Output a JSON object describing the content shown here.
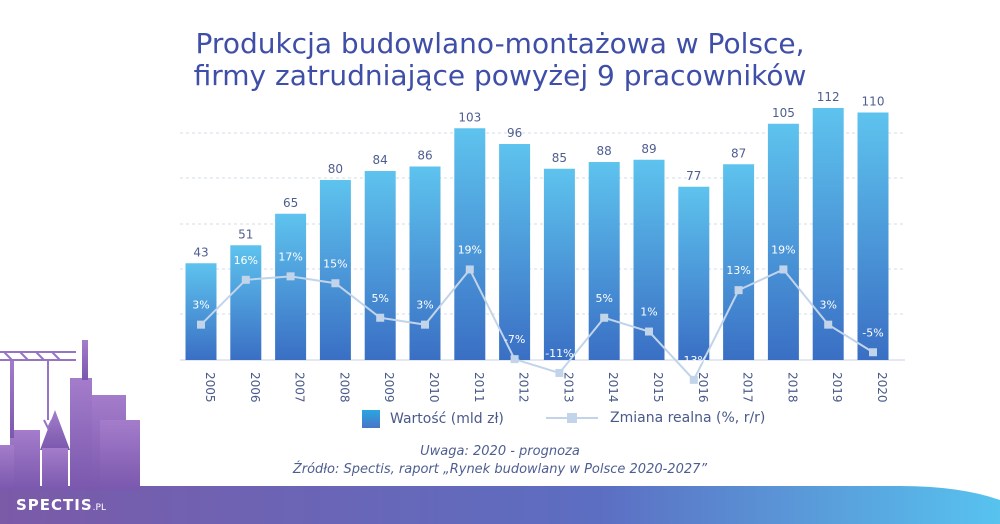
{
  "title_line1": "Produkcja budowlano-montażowa w Polsce,",
  "title_line2": "firmy zatrudniające powyżej 9 pracowników",
  "legend": {
    "bar_label": "Wartość (mld zł)",
    "line_label": "Zmiana realna (%, r/r)"
  },
  "notes": {
    "note": "Uwaga: 2020 - prognoza",
    "source": "Źródło: Spectis, raport „Rynek budowlany w Polsce 2020-2027”"
  },
  "brand": {
    "name": "SPECTIS",
    "suffix": ".PL"
  },
  "colors": {
    "title": "#3f4fa8",
    "bar_top": "#5ec3ee",
    "bar_bottom": "#3a6fc4",
    "line": "#c2d4ea",
    "footer": "#7b5aa8"
  },
  "chart_data": {
    "type": "bar",
    "categories": [
      "2005",
      "2006",
      "2007",
      "2008",
      "2009",
      "2010",
      "2011",
      "2012",
      "2013",
      "2014",
      "2015",
      "2016",
      "2017",
      "2018",
      "2019",
      "2020"
    ],
    "series": [
      {
        "name": "Wartość (mld zł)",
        "type": "bar",
        "values": [
          43,
          51,
          65,
          80,
          84,
          86,
          103,
          96,
          85,
          88,
          89,
          77,
          87,
          105,
          112,
          110
        ]
      },
      {
        "name": "Zmiana realna (%, r/r)",
        "type": "line",
        "values": [
          3,
          16,
          17,
          15,
          5,
          3,
          19,
          -7,
          -11,
          5,
          1,
          -13,
          13,
          19,
          3,
          -5
        ]
      }
    ],
    "data_labels_bar": [
      "43",
      "51",
      "65",
      "80",
      "84",
      "86",
      "103",
      "96",
      "85",
      "88",
      "89",
      "77",
      "87",
      "105",
      "112",
      "110"
    ],
    "data_labels_line": [
      "3%",
      "16%",
      "17%",
      "15%",
      "5%",
      "3%",
      "19%",
      "-7%",
      "-11%",
      "5%",
      "1%",
      "-13%",
      "13%",
      "19%",
      "3%",
      "-5%"
    ],
    "grid": true,
    "legend_position": "bottom"
  }
}
